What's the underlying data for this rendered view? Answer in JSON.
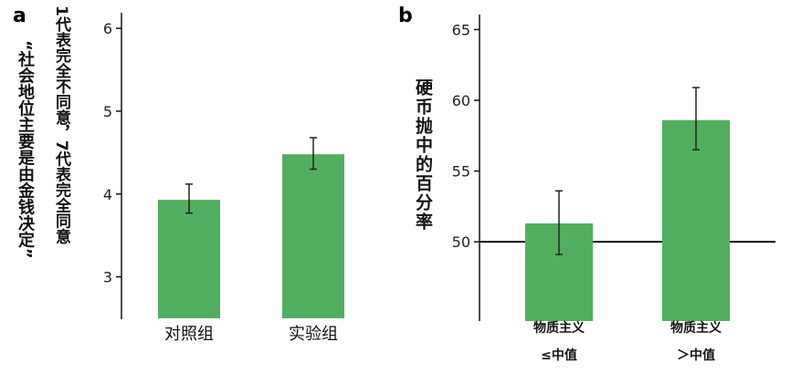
{
  "chart_data": [
    {
      "panel": "a",
      "type": "bar",
      "ylabel_lines": [
        "“社会地位主要是由金钱决定”",
        "1代表完全不同意，7代表完全同意"
      ],
      "categories": [
        "对照组",
        "实验组"
      ],
      "values": [
        3.93,
        4.48
      ],
      "error_low": [
        3.77,
        4.3
      ],
      "error_high": [
        4.12,
        4.68
      ],
      "yticks": [
        3,
        4,
        5,
        6
      ],
      "ylim": [
        2.5,
        6.1
      ],
      "color": "#52ae5f",
      "grid": false
    },
    {
      "panel": "b",
      "type": "bar",
      "ylabel": "硬币抛中的百分率",
      "categories": [
        [
          "物质主义",
          "≤中值"
        ],
        [
          "物质主义",
          "＞中值"
        ]
      ],
      "values": [
        51.3,
        58.6
      ],
      "error_low": [
        49.1,
        56.5
      ],
      "error_high": [
        53.6,
        60.9
      ],
      "yticks": [
        50,
        55,
        60,
        65
      ],
      "ylim": [
        44.4,
        65.8
      ],
      "reference_line": 50,
      "color": "#52ae5f",
      "grid": false
    }
  ]
}
